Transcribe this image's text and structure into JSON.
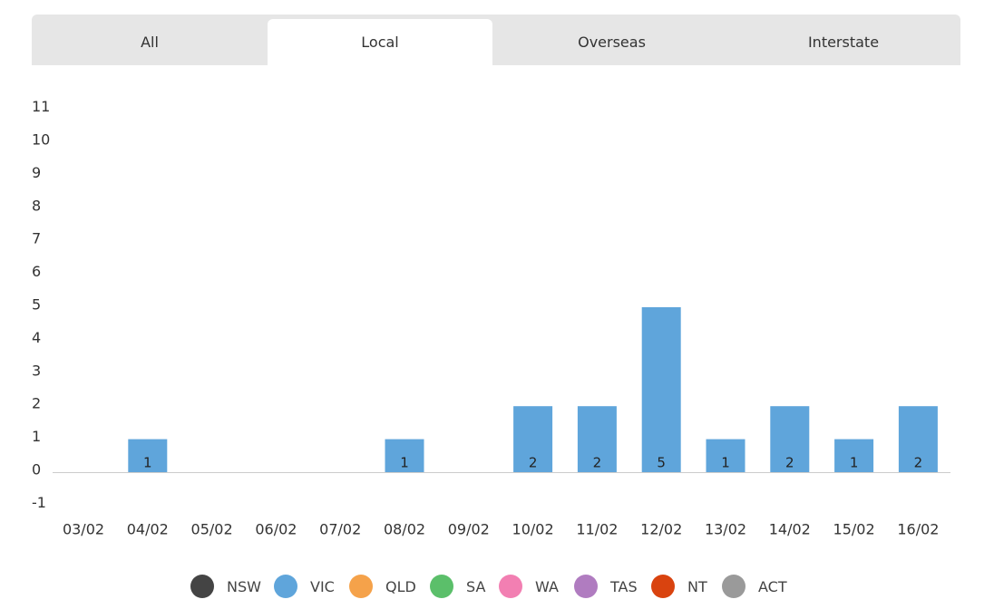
{
  "tabs": [
    {
      "label": "All",
      "active": false
    },
    {
      "label": "Local",
      "active": true
    },
    {
      "label": "Overseas",
      "active": false
    },
    {
      "label": "Interstate",
      "active": false
    }
  ],
  "legend": [
    {
      "label": "NSW",
      "color": "#444444"
    },
    {
      "label": "VIC",
      "color": "#5fa5db"
    },
    {
      "label": "QLD",
      "color": "#f5a24a"
    },
    {
      "label": "SA",
      "color": "#5bbf6a"
    },
    {
      "label": "WA",
      "color": "#f27fb2"
    },
    {
      "label": "TAS",
      "color": "#b07cc0"
    },
    {
      "label": "NT",
      "color": "#d9430f"
    },
    {
      "label": "ACT",
      "color": "#9a9a9a"
    }
  ],
  "chart_data": {
    "type": "bar",
    "categories": [
      "03/02",
      "04/02",
      "05/02",
      "06/02",
      "07/02",
      "08/02",
      "09/02",
      "10/02",
      "11/02",
      "12/02",
      "13/02",
      "14/02",
      "15/02",
      "16/02"
    ],
    "series": [
      {
        "name": "VIC",
        "color": "#5fa5db",
        "values": [
          0,
          1,
          0,
          0,
          0,
          1,
          0,
          2,
          2,
          5,
          1,
          2,
          1,
          2
        ]
      }
    ],
    "yticks": [
      -1,
      0,
      1,
      2,
      3,
      4,
      5,
      6,
      7,
      8,
      9,
      10,
      11
    ],
    "ylim": [
      -1,
      11
    ],
    "grid": false,
    "legend_position": "bottom"
  }
}
